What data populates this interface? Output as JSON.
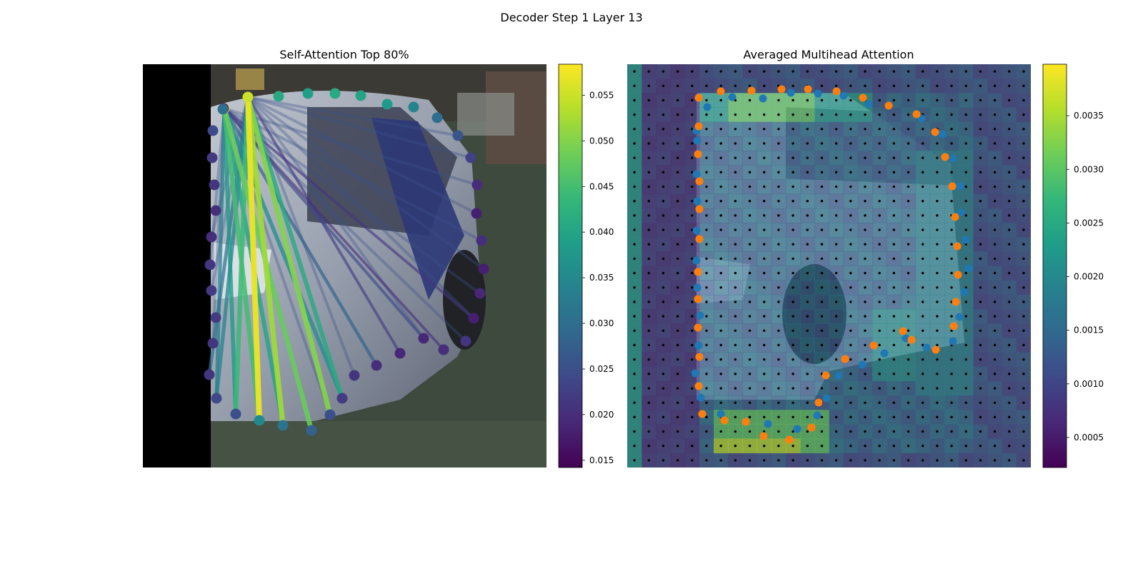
{
  "figure": {
    "suptitle": "Decoder Step 1 Layer 13"
  },
  "colors": {
    "viridis": [
      "#440154",
      "#482878",
      "#3e4989",
      "#31688e",
      "#26828e",
      "#1f9e89",
      "#35b779",
      "#6ece58",
      "#b5de2b",
      "#fde725"
    ],
    "pred_points": "#ff7f0e",
    "ref_points": "#1f77b4",
    "grid_dots": "#000000"
  },
  "chart_data": [
    {
      "type": "attention_graph",
      "title": "Self-Attention Top 80%",
      "colorbar": {
        "min": 0.0142,
        "max": 0.0584,
        "ticks": [
          "0.015",
          "0.020",
          "0.025",
          "0.030",
          "0.035",
          "0.040",
          "0.045",
          "0.050",
          "0.055"
        ]
      },
      "node_values": [
        0.057,
        0.055,
        0.041,
        0.039,
        0.041,
        0.04,
        0.038,
        0.034,
        0.03,
        0.026,
        0.023,
        0.02,
        0.018,
        0.02,
        0.018,
        0.019,
        0.018,
        0.021,
        0.02,
        0.019,
        0.019,
        0.02,
        0.021,
        0.022,
        0.025,
        0.028,
        0.031,
        0.035,
        0.025,
        0.024,
        0.021,
        0.021,
        0.022,
        0.022,
        0.021,
        0.02,
        0.02,
        0.021,
        0.022,
        0.024,
        0.019,
        0.03
      ],
      "edges": [
        {
          "from": 1,
          "to": 27,
          "value": 0.057
        },
        {
          "from": 1,
          "to": 24,
          "value": 0.05
        },
        {
          "from": 0,
          "to": 27,
          "value": 0.045
        },
        {
          "from": 0,
          "to": 25,
          "value": 0.048
        },
        {
          "from": 1,
          "to": 26,
          "value": 0.052
        },
        {
          "from": 0,
          "to": 26,
          "value": 0.04
        },
        {
          "from": 1,
          "to": 28,
          "value": 0.044
        },
        {
          "from": 0,
          "to": 23,
          "value": 0.036
        },
        {
          "from": 1,
          "to": 23,
          "value": 0.041
        },
        {
          "from": 1,
          "to": 29,
          "value": 0.034
        },
        {
          "from": 0,
          "to": 28,
          "value": 0.038
        },
        {
          "from": 0,
          "to": 29,
          "value": 0.033
        },
        {
          "from": 0,
          "to": 19,
          "value": 0.024
        },
        {
          "from": 0,
          "to": 21,
          "value": 0.028
        },
        {
          "from": 1,
          "to": 20,
          "value": 0.022
        },
        {
          "from": 0,
          "to": 16,
          "value": 0.021
        },
        {
          "from": 0,
          "to": 18,
          "value": 0.02
        },
        {
          "from": 1,
          "to": 30,
          "value": 0.03
        }
      ]
    },
    {
      "type": "heatmap",
      "title": "Averaged Multihead Attention",
      "colorbar": {
        "min": 0.00022,
        "max": 0.00398,
        "ticks": [
          "0.0005",
          "0.0010",
          "0.0015",
          "0.0020",
          "0.0025",
          "0.0030",
          "0.0035"
        ]
      },
      "grid_size": 28,
      "series": [
        {
          "name": "orange points",
          "color": "#ff7f0e"
        },
        {
          "name": "blue points",
          "color": "#1f77b4"
        }
      ]
    }
  ]
}
